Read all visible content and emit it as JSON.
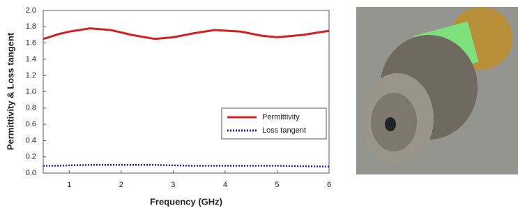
{
  "chart_data": {
    "type": "line",
    "xlabel": "Frequency (GHz)",
    "ylabel": "Permittivity & Loss tangent",
    "x": [
      0.5,
      0.8,
      1.0,
      1.4,
      1.8,
      2.2,
      2.65,
      3.0,
      3.4,
      3.8,
      4.3,
      4.7,
      5.0,
      5.5,
      6.0
    ],
    "series": [
      {
        "name": "Permittivity",
        "color": "#d42020",
        "style": "solid",
        "values": [
          1.65,
          1.71,
          1.74,
          1.78,
          1.76,
          1.7,
          1.65,
          1.67,
          1.72,
          1.76,
          1.74,
          1.69,
          1.67,
          1.7,
          1.75
        ]
      },
      {
        "name": "Loss tangent",
        "color": "#2020c0",
        "style": "dotted",
        "values": [
          0.09,
          0.09,
          0.095,
          0.1,
          0.1,
          0.1,
          0.1,
          0.095,
          0.09,
          0.09,
          0.09,
          0.09,
          0.09,
          0.085,
          0.08
        ]
      }
    ],
    "xlim": [
      0.5,
      6
    ],
    "xticks": [
      1,
      2,
      3,
      4,
      5,
      6
    ],
    "ylim": [
      0,
      2
    ],
    "yticks": [
      {
        "value": 0,
        "label": "0.0"
      },
      0.2,
      0.4,
      0.6,
      0.8,
      {
        "value": 1,
        "label": "1.0"
      },
      1.2,
      1.4,
      1.6,
      1.8,
      {
        "value": 2,
        "label": "2.0"
      }
    ],
    "legend": "lower right"
  }
}
